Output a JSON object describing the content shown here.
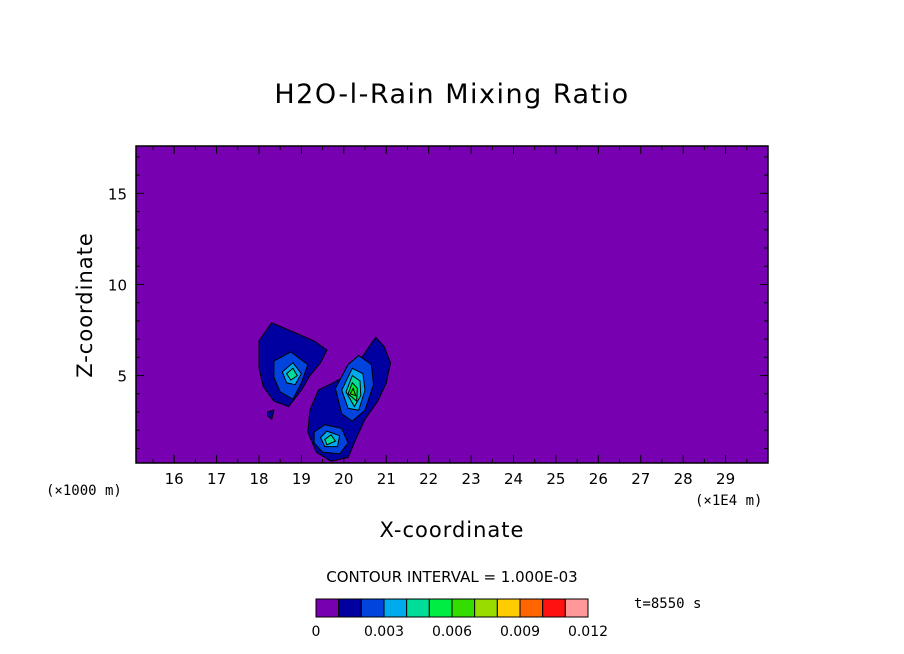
{
  "chart_data": {
    "type": "heatmap",
    "title": "H2O-l-Rain Mixing Ratio",
    "xlabel": "X-coordinate",
    "ylabel": "Z-coordinate",
    "x_scale_note_left": "(×1000 m)",
    "x_scale_note_right": "(×1E4 m)",
    "xlim": [
      15.1,
      30.0
    ],
    "ylim": [
      0.2,
      17.6
    ],
    "x_ticks": [
      16,
      17,
      18,
      19,
      20,
      21,
      22,
      23,
      24,
      25,
      26,
      27,
      28,
      29
    ],
    "y_ticks": [
      5,
      10,
      15
    ],
    "contour_interval_text": "CONTOUR INTERVAL = 1.000E-03",
    "time_text": "t=8550 s",
    "colorbar": {
      "levels": [
        0,
        0.001,
        0.002,
        0.003,
        0.004,
        0.005,
        0.006,
        0.007,
        0.008,
        0.009,
        0.01,
        0.011,
        0.012
      ],
      "colors": [
        "#7700b0",
        "#0000a0",
        "#0044dd",
        "#00aaee",
        "#00dd99",
        "#00ee44",
        "#33dd00",
        "#99dd00",
        "#ffcc00",
        "#ff6600",
        "#ff1111",
        "#ff9999"
      ],
      "tick_labels": [
        "0",
        "0.003",
        "0.006",
        "0.009",
        "0.012"
      ]
    },
    "background_color": "#7700b0",
    "regions": [
      {
        "level": 0.001,
        "points": [
          [
            18.0,
            6.9
          ],
          [
            18.3,
            7.9
          ],
          [
            18.8,
            7.4
          ],
          [
            19.3,
            6.9
          ],
          [
            19.6,
            6.4
          ],
          [
            19.45,
            5.7
          ],
          [
            19.2,
            5.0
          ],
          [
            19.0,
            4.2
          ],
          [
            18.7,
            3.3
          ],
          [
            18.35,
            3.6
          ],
          [
            18.1,
            4.4
          ],
          [
            18.0,
            5.4
          ]
        ]
      },
      {
        "level": 0.001,
        "points": [
          [
            19.4,
            4.2
          ],
          [
            19.75,
            4.6
          ],
          [
            20.2,
            5.2
          ],
          [
            20.6,
            6.6
          ],
          [
            20.75,
            7.1
          ],
          [
            20.95,
            6.6
          ],
          [
            21.1,
            5.7
          ],
          [
            21.0,
            4.6
          ],
          [
            20.8,
            3.6
          ],
          [
            20.5,
            2.6
          ],
          [
            20.3,
            1.6
          ],
          [
            20.1,
            0.5
          ],
          [
            19.7,
            0.3
          ],
          [
            19.35,
            0.8
          ],
          [
            19.15,
            1.9
          ],
          [
            19.2,
            3.1
          ]
        ]
      },
      {
        "level": 0.001,
        "points": [
          [
            18.2,
            3.0
          ],
          [
            18.35,
            3.1
          ],
          [
            18.3,
            2.6
          ],
          [
            18.2,
            2.8
          ]
        ]
      },
      {
        "level": 0.002,
        "points": [
          [
            18.35,
            5.8
          ],
          [
            18.75,
            6.3
          ],
          [
            19.15,
            5.6
          ],
          [
            19.0,
            4.6
          ],
          [
            18.8,
            3.7
          ],
          [
            18.5,
            4.1
          ],
          [
            18.35,
            4.9
          ]
        ]
      },
      {
        "level": 0.002,
        "points": [
          [
            19.8,
            4.3
          ],
          [
            20.1,
            5.6
          ],
          [
            20.35,
            6.1
          ],
          [
            20.65,
            5.6
          ],
          [
            20.7,
            4.5
          ],
          [
            20.5,
            3.1
          ],
          [
            20.2,
            2.5
          ],
          [
            19.95,
            2.9
          ]
        ]
      },
      {
        "level": 0.002,
        "points": [
          [
            19.3,
            1.9
          ],
          [
            19.55,
            2.3
          ],
          [
            19.95,
            2.1
          ],
          [
            20.1,
            1.3
          ],
          [
            19.9,
            0.7
          ],
          [
            19.5,
            0.8
          ],
          [
            19.3,
            1.3
          ]
        ]
      },
      {
        "level": 0.003,
        "points": [
          [
            18.55,
            5.2
          ],
          [
            18.8,
            5.7
          ],
          [
            19.0,
            5.1
          ],
          [
            18.85,
            4.5
          ],
          [
            18.65,
            4.6
          ]
        ]
      },
      {
        "level": 0.003,
        "points": [
          [
            19.95,
            4.2
          ],
          [
            20.2,
            5.4
          ],
          [
            20.45,
            5.1
          ],
          [
            20.5,
            4.2
          ],
          [
            20.35,
            3.1
          ],
          [
            20.1,
            3.2
          ]
        ]
      },
      {
        "level": 0.003,
        "points": [
          [
            19.45,
            1.6
          ],
          [
            19.6,
            1.95
          ],
          [
            19.9,
            1.7
          ],
          [
            19.85,
            1.1
          ],
          [
            19.55,
            1.1
          ]
        ]
      },
      {
        "level": 0.004,
        "points": [
          [
            18.65,
            5.1
          ],
          [
            18.8,
            5.4
          ],
          [
            18.9,
            5.0
          ],
          [
            18.75,
            4.75
          ]
        ]
      },
      {
        "level": 0.004,
        "points": [
          [
            20.05,
            4.1
          ],
          [
            20.2,
            5.0
          ],
          [
            20.38,
            4.7
          ],
          [
            20.4,
            3.9
          ],
          [
            20.25,
            3.3
          ]
        ]
      },
      {
        "level": 0.004,
        "points": [
          [
            19.55,
            1.5
          ],
          [
            19.7,
            1.75
          ],
          [
            19.8,
            1.4
          ],
          [
            19.6,
            1.2
          ]
        ]
      },
      {
        "level": 0.005,
        "points": [
          [
            20.1,
            4.0
          ],
          [
            20.2,
            4.6
          ],
          [
            20.32,
            4.3
          ],
          [
            20.3,
            3.6
          ]
        ]
      },
      {
        "level": 0.006,
        "points": [
          [
            20.15,
            4.0
          ],
          [
            20.22,
            4.3
          ],
          [
            20.28,
            3.9
          ]
        ]
      }
    ]
  }
}
